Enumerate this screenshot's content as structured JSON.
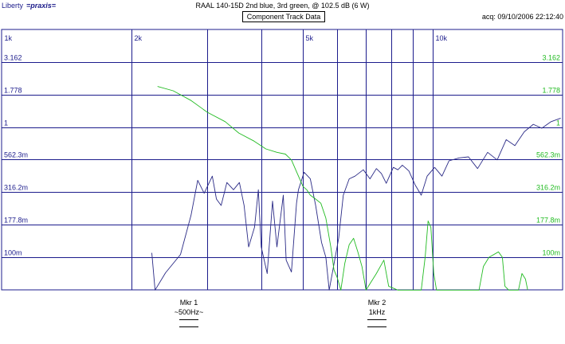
{
  "header": {
    "brand": "Liberty",
    "logo": "=praxis=",
    "title": "RAAL 140-15D 2nd blue, 3rd green, @ 102.5 dB (6 W)",
    "button_label": "Component Track Data",
    "acq": "acq: 09/10/2006 22:12:40"
  },
  "markers": [
    {
      "name": "Mkr 1",
      "value": "~500Hz~"
    },
    {
      "name": "Mkr 2",
      "value": "1kHz"
    }
  ],
  "colors": {
    "blue": "#2a2a86",
    "green": "#22bb22",
    "grid": "#1c1c8c"
  },
  "chart_data": {
    "type": "line",
    "x_scale": "log",
    "y_scale": "log",
    "xlim": [
      1000,
      20000
    ],
    "ylim": [
      0.0562,
      5.62
    ],
    "x_ticks": [
      {
        "v": 1000,
        "label": "1k"
      },
      {
        "v": 2000,
        "label": "2k"
      },
      {
        "v": 3000,
        "label": ""
      },
      {
        "v": 4000,
        "label": ""
      },
      {
        "v": 5000,
        "label": "5k"
      },
      {
        "v": 6000,
        "label": ""
      },
      {
        "v": 7000,
        "label": ""
      },
      {
        "v": 8000,
        "label": ""
      },
      {
        "v": 9000,
        "label": ""
      },
      {
        "v": 10000,
        "label": "10k"
      },
      {
        "v": 20000,
        "label": ""
      }
    ],
    "y_ticks": [
      {
        "v": 3.162,
        "label": "3.162"
      },
      {
        "v": 1.778,
        "label": "1.778"
      },
      {
        "v": 1.0,
        "label": "1"
      },
      {
        "v": 0.5623,
        "label": "562.3m"
      },
      {
        "v": 0.3162,
        "label": "316.2m"
      },
      {
        "v": 0.1778,
        "label": "177.8m"
      },
      {
        "v": 0.1,
        "label": "100m"
      }
    ],
    "series": [
      {
        "color": "#2a2a86",
        "points": [
          [
            2230,
            0.108
          ],
          [
            2270,
            0.056
          ],
          [
            2400,
            0.076
          ],
          [
            2600,
            0.105
          ],
          [
            2750,
            0.21
          ],
          [
            2850,
            0.39
          ],
          [
            2950,
            0.31
          ],
          [
            3080,
            0.42
          ],
          [
            3150,
            0.28
          ],
          [
            3230,
            0.25
          ],
          [
            3330,
            0.375
          ],
          [
            3450,
            0.33
          ],
          [
            3560,
            0.375
          ],
          [
            3650,
            0.25
          ],
          [
            3740,
            0.12
          ],
          [
            3860,
            0.17
          ],
          [
            3940,
            0.33
          ],
          [
            4000,
            0.12
          ],
          [
            4130,
            0.075
          ],
          [
            4250,
            0.27
          ],
          [
            4350,
            0.12
          ],
          [
            4500,
            0.3
          ],
          [
            4570,
            0.095
          ],
          [
            4700,
            0.077
          ],
          [
            4830,
            0.26
          ],
          [
            4880,
            0.33
          ],
          [
            5030,
            0.45
          ],
          [
            5200,
            0.4
          ],
          [
            5350,
            0.25
          ],
          [
            5520,
            0.13
          ],
          [
            5650,
            0.1
          ],
          [
            5750,
            0.056
          ],
          [
            6050,
            0.14
          ],
          [
            6200,
            0.3
          ],
          [
            6400,
            0.4
          ],
          [
            6600,
            0.42
          ],
          [
            6900,
            0.47
          ],
          [
            7150,
            0.4
          ],
          [
            7400,
            0.48
          ],
          [
            7600,
            0.44
          ],
          [
            7800,
            0.37
          ],
          [
            8100,
            0.49
          ],
          [
            8300,
            0.47
          ],
          [
            8500,
            0.51
          ],
          [
            8800,
            0.46
          ],
          [
            9100,
            0.36
          ],
          [
            9400,
            0.3
          ],
          [
            9700,
            0.42
          ],
          [
            10100,
            0.49
          ],
          [
            10500,
            0.42
          ],
          [
            10900,
            0.55
          ],
          [
            11500,
            0.58
          ],
          [
            12100,
            0.59
          ],
          [
            12700,
            0.48
          ],
          [
            13400,
            0.64
          ],
          [
            14100,
            0.56
          ],
          [
            14800,
            0.8
          ],
          [
            15500,
            0.72
          ],
          [
            16300,
            0.92
          ],
          [
            17100,
            1.05
          ],
          [
            17900,
            0.98
          ],
          [
            18800,
            1.1
          ],
          [
            19800,
            1.17
          ]
        ]
      },
      {
        "color": "#22bb22",
        "points": [
          [
            2300,
            2.05
          ],
          [
            2500,
            1.9
          ],
          [
            2750,
            1.6
          ],
          [
            3000,
            1.3
          ],
          [
            3300,
            1.1
          ],
          [
            3550,
            0.9
          ],
          [
            3850,
            0.78
          ],
          [
            4100,
            0.68
          ],
          [
            4350,
            0.64
          ],
          [
            4550,
            0.62
          ],
          [
            4700,
            0.56
          ],
          [
            4850,
            0.44
          ],
          [
            5000,
            0.35
          ],
          [
            5100,
            0.33
          ],
          [
            5200,
            0.3
          ],
          [
            5350,
            0.28
          ],
          [
            5500,
            0.26
          ],
          [
            5650,
            0.2
          ],
          [
            5800,
            0.12
          ],
          [
            5900,
            0.08
          ],
          [
            6000,
            0.07
          ],
          [
            6120,
            0.056
          ],
          [
            6250,
            0.09
          ],
          [
            6400,
            0.125
          ],
          [
            6550,
            0.14
          ],
          [
            6700,
            0.11
          ],
          [
            6850,
            0.085
          ],
          [
            7000,
            0.056
          ],
          [
            7400,
            0.075
          ],
          [
            7700,
            0.095
          ],
          [
            7900,
            0.06
          ],
          [
            8300,
            0.056
          ],
          [
            9400,
            0.056
          ],
          [
            9600,
            0.1
          ],
          [
            9750,
            0.19
          ],
          [
            9900,
            0.17
          ],
          [
            10050,
            0.075
          ],
          [
            10200,
            0.056
          ],
          [
            11000,
            0.056
          ],
          [
            12800,
            0.056
          ],
          [
            13100,
            0.085
          ],
          [
            13500,
            0.1
          ],
          [
            14200,
            0.11
          ],
          [
            14500,
            0.1
          ],
          [
            14700,
            0.06
          ],
          [
            15000,
            0.056
          ],
          [
            15800,
            0.056
          ],
          [
            16100,
            0.075
          ],
          [
            16400,
            0.068
          ],
          [
            16600,
            0.056
          ]
        ]
      }
    ]
  }
}
